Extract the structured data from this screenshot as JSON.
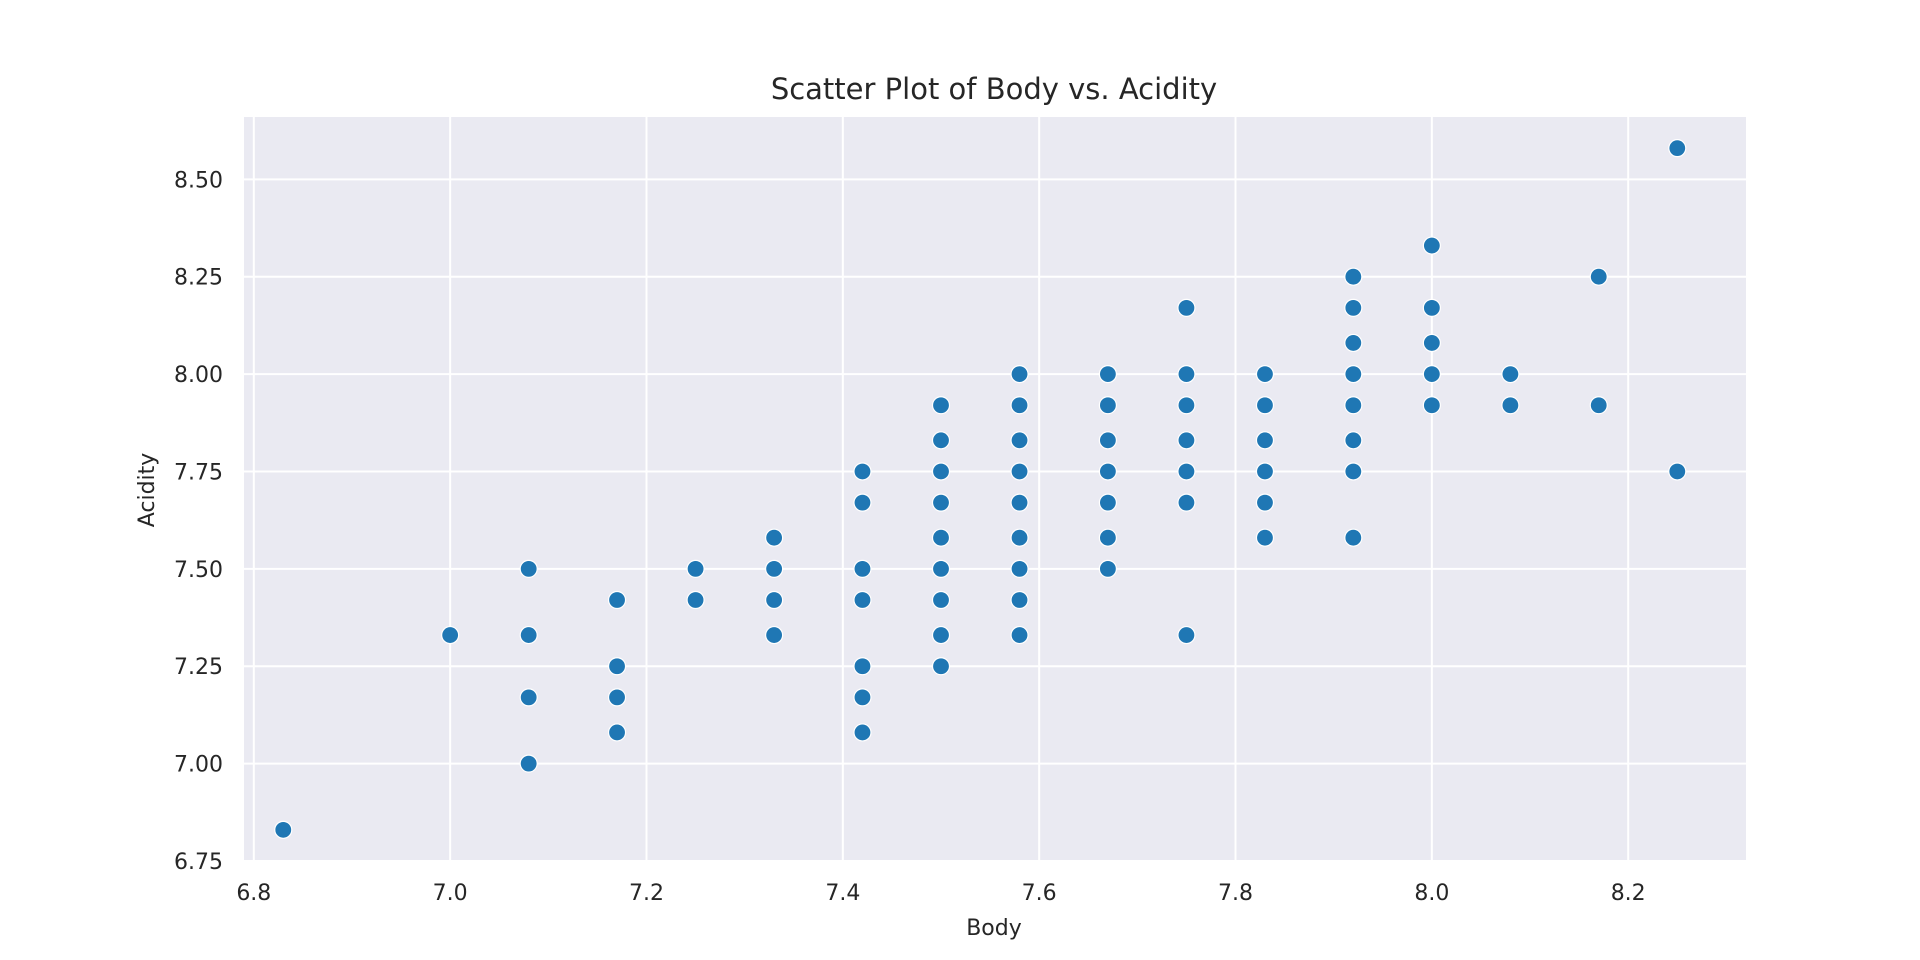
{
  "chart_data": {
    "type": "scatter",
    "title": "Scatter Plot of Body vs. Acidity",
    "xlabel": "Body",
    "ylabel": "Acidity",
    "xlim": [
      6.79,
      8.32
    ],
    "ylim": [
      6.75,
      8.66
    ],
    "xticks": [
      6.8,
      7.0,
      7.2,
      7.4,
      7.6,
      7.8,
      8.0,
      8.2
    ],
    "xtick_labels": [
      "6.8",
      "7.0",
      "7.2",
      "7.4",
      "7.6",
      "7.8",
      "8.0",
      "8.2"
    ],
    "yticks": [
      6.75,
      7.0,
      7.25,
      7.5,
      7.75,
      8.0,
      8.25,
      8.5
    ],
    "ytick_labels": [
      "6.75",
      "7.00",
      "7.25",
      "7.50",
      "7.75",
      "8.00",
      "8.25",
      "8.50"
    ],
    "grid": true,
    "colors": {
      "background": "#eaeaf2",
      "grid": "#ffffff",
      "point": "#1f77b4",
      "point_edge": "#ffffff"
    },
    "series": [
      {
        "points": [
          [
            6.83,
            6.83
          ],
          [
            7.0,
            7.33
          ],
          [
            7.08,
            7.5
          ],
          [
            7.08,
            7.33
          ],
          [
            7.08,
            7.17
          ],
          [
            7.08,
            7.0
          ],
          [
            7.17,
            7.42
          ],
          [
            7.17,
            7.25
          ],
          [
            7.17,
            7.17
          ],
          [
            7.17,
            7.08
          ],
          [
            7.25,
            7.5
          ],
          [
            7.25,
            7.42
          ],
          [
            7.33,
            7.58
          ],
          [
            7.33,
            7.5
          ],
          [
            7.33,
            7.42
          ],
          [
            7.33,
            7.33
          ],
          [
            7.42,
            7.75
          ],
          [
            7.42,
            7.67
          ],
          [
            7.42,
            7.5
          ],
          [
            7.42,
            7.42
          ],
          [
            7.42,
            7.25
          ],
          [
            7.42,
            7.17
          ],
          [
            7.42,
            7.08
          ],
          [
            7.5,
            7.92
          ],
          [
            7.5,
            7.83
          ],
          [
            7.5,
            7.75
          ],
          [
            7.5,
            7.67
          ],
          [
            7.5,
            7.58
          ],
          [
            7.5,
            7.5
          ],
          [
            7.5,
            7.42
          ],
          [
            7.5,
            7.33
          ],
          [
            7.5,
            7.25
          ],
          [
            7.58,
            8.0
          ],
          [
            7.58,
            7.92
          ],
          [
            7.58,
            7.83
          ],
          [
            7.58,
            7.75
          ],
          [
            7.58,
            7.67
          ],
          [
            7.58,
            7.58
          ],
          [
            7.58,
            7.5
          ],
          [
            7.58,
            7.42
          ],
          [
            7.58,
            7.33
          ],
          [
            7.67,
            8.0
          ],
          [
            7.67,
            7.92
          ],
          [
            7.67,
            7.83
          ],
          [
            7.67,
            7.75
          ],
          [
            7.67,
            7.67
          ],
          [
            7.67,
            7.58
          ],
          [
            7.67,
            7.5
          ],
          [
            7.75,
            8.17
          ],
          [
            7.75,
            8.0
          ],
          [
            7.75,
            7.92
          ],
          [
            7.75,
            7.83
          ],
          [
            7.75,
            7.75
          ],
          [
            7.75,
            7.67
          ],
          [
            7.75,
            7.33
          ],
          [
            7.83,
            8.0
          ],
          [
            7.83,
            7.92
          ],
          [
            7.83,
            7.83
          ],
          [
            7.83,
            7.75
          ],
          [
            7.83,
            7.67
          ],
          [
            7.83,
            7.58
          ],
          [
            7.92,
            8.25
          ],
          [
            7.92,
            8.17
          ],
          [
            7.92,
            8.08
          ],
          [
            7.92,
            8.0
          ],
          [
            7.92,
            7.92
          ],
          [
            7.92,
            7.83
          ],
          [
            7.92,
            7.75
          ],
          [
            7.92,
            7.58
          ],
          [
            8.0,
            8.33
          ],
          [
            8.0,
            8.17
          ],
          [
            8.0,
            8.08
          ],
          [
            8.0,
            8.0
          ],
          [
            8.0,
            7.92
          ],
          [
            8.08,
            8.0
          ],
          [
            8.08,
            7.92
          ],
          [
            8.17,
            8.25
          ],
          [
            8.17,
            7.92
          ],
          [
            8.25,
            8.58
          ],
          [
            8.25,
            7.75
          ]
        ]
      }
    ]
  }
}
